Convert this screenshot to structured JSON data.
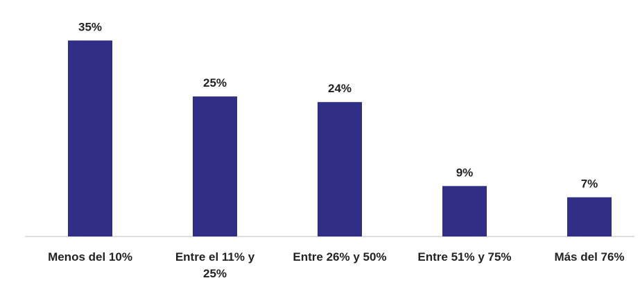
{
  "chart_data": {
    "type": "bar",
    "categories": [
      "Menos del 10%",
      "Entre el 11% y 25%",
      "Entre 26% y 50%",
      "Entre 51% y 75%",
      "Más del 76%"
    ],
    "values": [
      35,
      25,
      24,
      9,
      7
    ],
    "data_labels": [
      "35%",
      "25%",
      "24%",
      "9%",
      "7%"
    ],
    "ylim": [
      0,
      40
    ],
    "grid": false,
    "legend": "none",
    "bar_color": "#312e85",
    "bar_shadow_color": "#3a3896",
    "axis_color": "#bfbfbf",
    "label_color": "#222222"
  }
}
